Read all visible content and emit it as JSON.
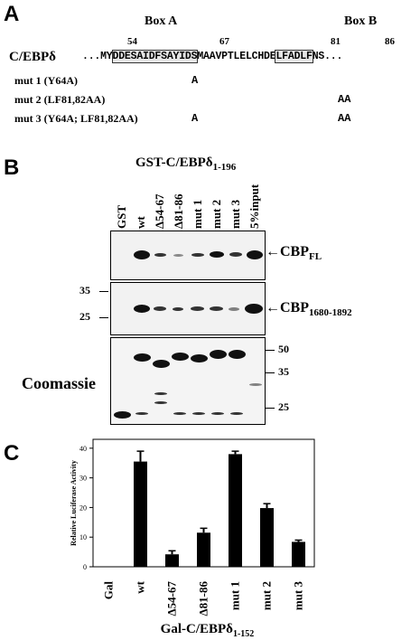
{
  "panelA": {
    "letter": "A",
    "box_a_label": "Box A",
    "box_b_label": "Box B",
    "protein": "C/EBPδ",
    "pos_54": "54",
    "pos_67": "67",
    "pos_81": "81",
    "pos_86": "86",
    "sequence": {
      "lead": "...MY",
      "boxA": "DDESAIDFSAYIDS",
      "mid": "MAAVPTLELCHDE",
      "boxB": "LFADLF",
      "tail": "NS..."
    },
    "mutants": [
      {
        "label": "mut 1 (Y64A)",
        "a_sub": "A",
        "b_sub": ""
      },
      {
        "label": "mut 2 (LF81,82AA)",
        "a_sub": "",
        "b_sub": "AA"
      },
      {
        "label": "mut 3 (Y64A; LF81,82AA)",
        "a_sub": "A",
        "b_sub": "AA"
      }
    ]
  },
  "panelB": {
    "letter": "B",
    "header_main": "GST-C/EBPδ",
    "header_sub": "1-196",
    "lanes": [
      "GST",
      "wt",
      "Δ54-67",
      "Δ81-86",
      "mut 1",
      "mut 2",
      "mut 3",
      "5%input"
    ],
    "cbp_fl_main": "CBP",
    "cbp_fl_sub": "FL",
    "cbp_frag_main": "CBP",
    "cbp_frag_sub": "1680-1892",
    "mw_left_35": "35",
    "mw_left_25": "25",
    "coomassie": "Coomassie",
    "mw_right": [
      "50",
      "35",
      "25"
    ]
  },
  "panelC": {
    "letter": "C",
    "chart_data": {
      "type": "bar",
      "categories": [
        "Gal",
        "wt",
        "Δ54-67",
        "Δ81-86",
        "mut 1",
        "mut 2",
        "mut 3"
      ],
      "values": [
        0,
        35.5,
        4.2,
        11.5,
        38,
        19.8,
        8.4
      ],
      "errors": [
        0,
        3.5,
        1.2,
        1.5,
        1,
        1.5,
        0.6
      ],
      "ylabel": "Relative Luciferase Activity",
      "xlabel_main": "Gal-C/EBPδ",
      "xlabel_sub": "1-152",
      "ylim": [
        0,
        43
      ],
      "yticks": [
        0,
        10,
        20,
        30,
        40
      ],
      "bar_color": "#000000"
    }
  }
}
